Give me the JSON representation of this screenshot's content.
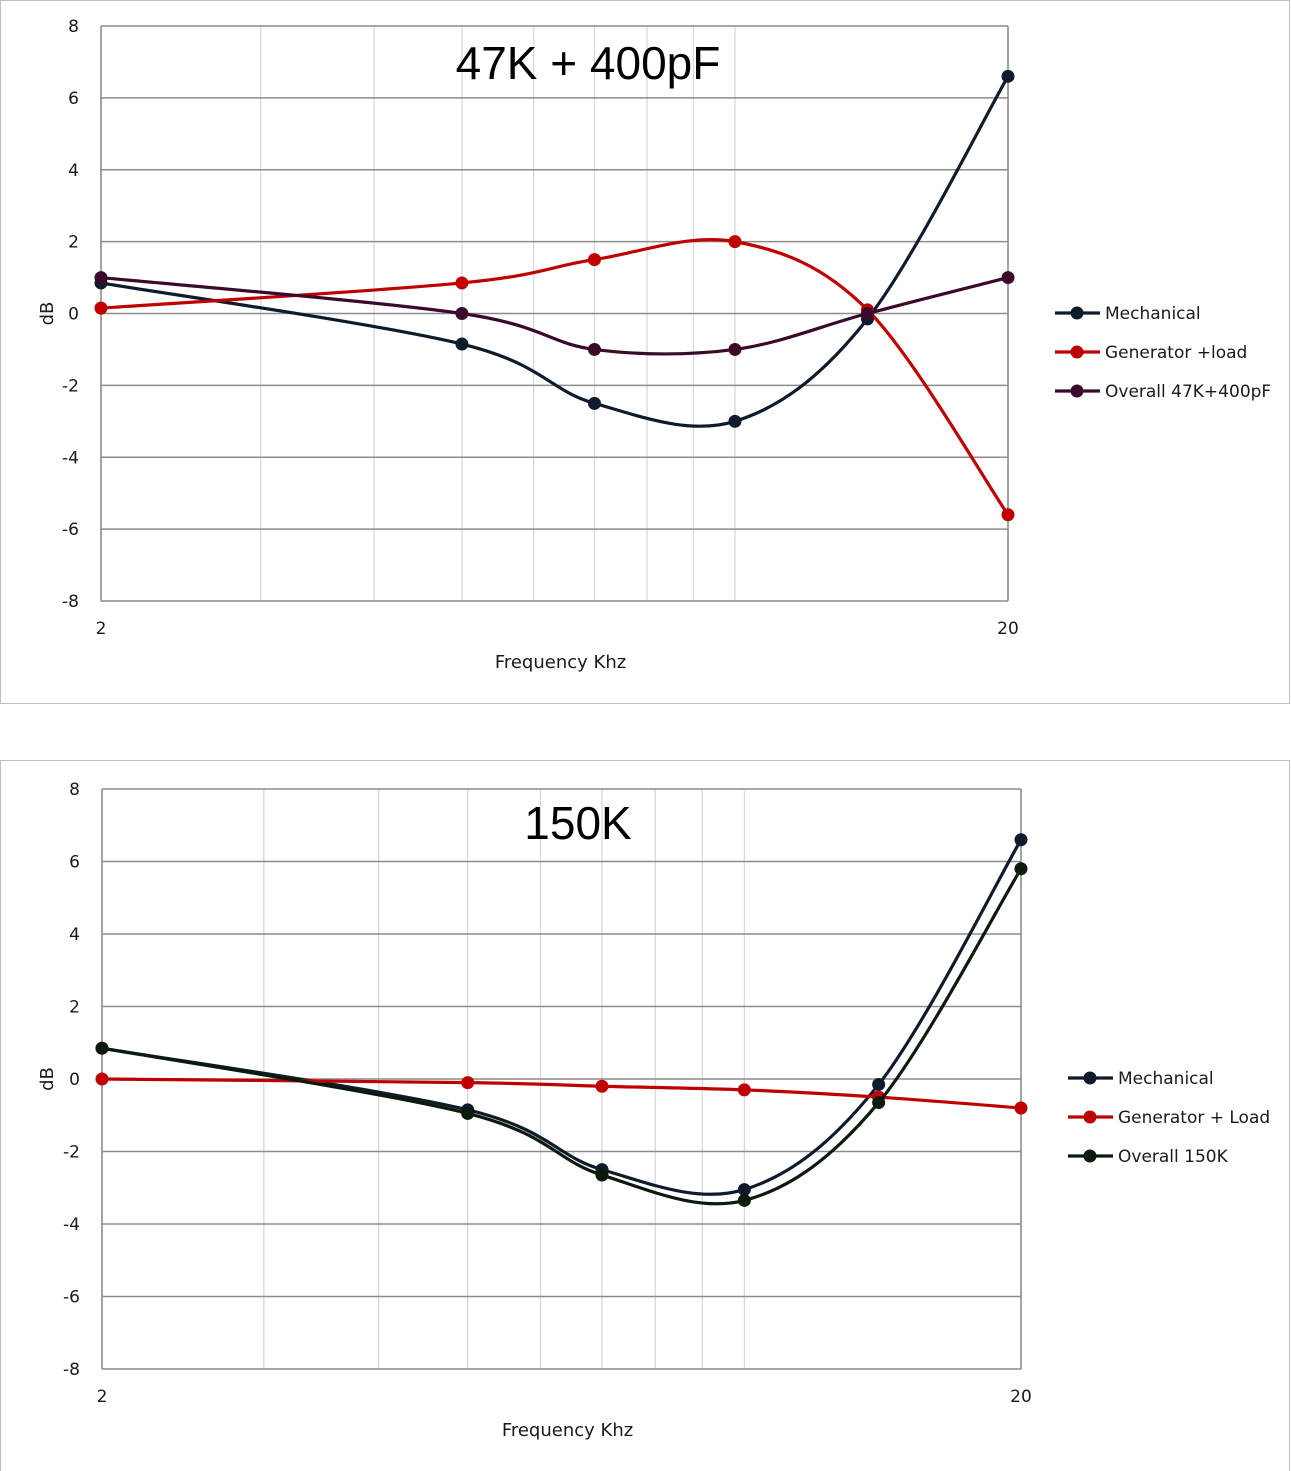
{
  "chart_data": [
    {
      "type": "line",
      "title": "47K + 400pF",
      "xlabel": "Frequency Khz",
      "ylabel": "dB",
      "x_scale": "log",
      "xlim": [
        2,
        20
      ],
      "x_ticks": [
        2,
        20
      ],
      "ylim": [
        -8,
        8
      ],
      "y_ticks": [
        -8,
        -6,
        -4,
        -2,
        0,
        2,
        4,
        6,
        8
      ],
      "grid": true,
      "legend": "right",
      "x": [
        2,
        5,
        7,
        10,
        14,
        20
      ],
      "series": [
        {
          "name": "Mechanical",
          "color": "#0d1b2a",
          "values": [
            0.85,
            -0.85,
            -2.5,
            -3.0,
            -0.15,
            6.6
          ]
        },
        {
          "name": "Generator +load",
          "color": "#c00000",
          "values": [
            0.15,
            0.85,
            1.5,
            2.0,
            0.1,
            -5.6
          ]
        },
        {
          "name": "Overall 47K+400pF",
          "color": "#3b0a2a",
          "values": [
            1.0,
            0.0,
            -1.0,
            -1.0,
            0.0,
            1.0
          ]
        }
      ]
    },
    {
      "type": "line",
      "title": "150K",
      "xlabel": "Frequency Khz",
      "ylabel": "dB",
      "x_scale": "log",
      "xlim": [
        2,
        20
      ],
      "x_ticks": [
        2,
        20
      ],
      "ylim": [
        -8,
        8
      ],
      "y_ticks": [
        -8,
        -6,
        -4,
        -2,
        0,
        2,
        4,
        6,
        8
      ],
      "grid": true,
      "legend": "right",
      "x": [
        2,
        5,
        7,
        10,
        14,
        20
      ],
      "series": [
        {
          "name": "Mechanical",
          "color": "#0d1b2a",
          "values": [
            0.85,
            -0.85,
            -2.5,
            -3.05,
            -0.15,
            6.6
          ]
        },
        {
          "name": "Generator + Load",
          "color": "#c00000",
          "values": [
            0.0,
            -0.1,
            -0.2,
            -0.3,
            -0.5,
            -0.8
          ]
        },
        {
          "name": "Overall 150K",
          "color": "#0b1a0b",
          "values": [
            0.85,
            -0.95,
            -2.65,
            -3.35,
            -0.65,
            5.8
          ]
        }
      ]
    }
  ]
}
